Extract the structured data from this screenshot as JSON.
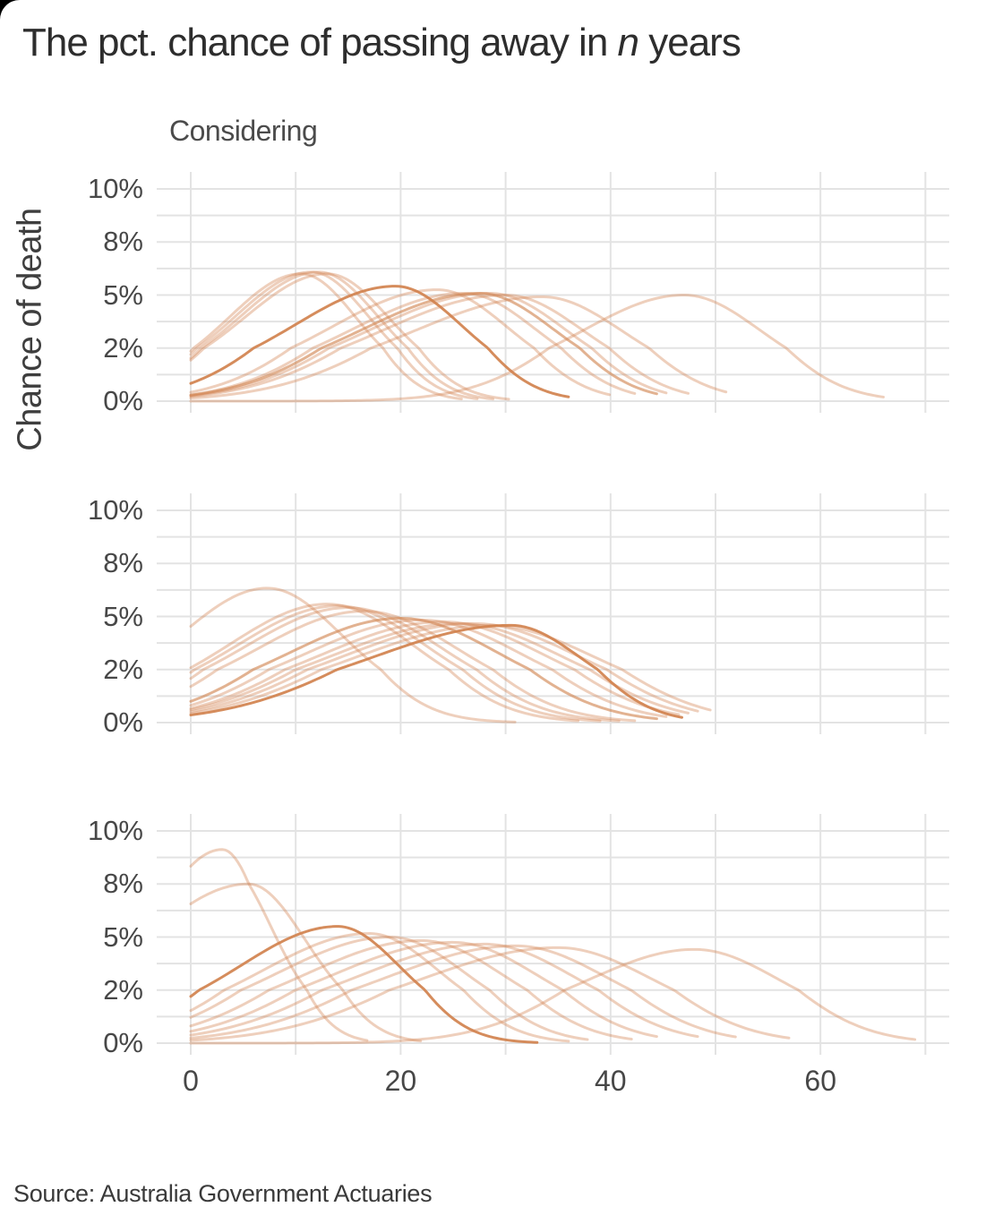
{
  "header": {
    "title_prefix": "The pct. chance of passing away in ",
    "title_italic": "n",
    "title_suffix": " years",
    "subtitle": "Considering"
  },
  "y_axis_title": "Chance of death",
  "source": "Source: Australia Government Actuaries",
  "colors": {
    "background": "#ffffff",
    "window_corner": "#000000",
    "title_text": "#2d2d2d",
    "subtitle_text": "#4b4b4b",
    "axis_text": "#474747",
    "gridline": "#e3e3e3",
    "curve_stroke": "#d1824e",
    "curve_opacity_normal": 0.38,
    "curve_opacity_medium": 0.62,
    "curve_opacity_strong": 0.92
  },
  "chart_data": {
    "type": "line",
    "title": "The pct. chance of passing away in n years",
    "subtitle": "Considering",
    "ylabel": "Chance of death",
    "xlabel": "",
    "legend": "none",
    "grid": "on",
    "x_range": [
      0,
      70
    ],
    "y_range_pct": [
      0,
      10
    ],
    "y_scale_note": "non-linear axis: labeled values 0,2,5,8,10 are evenly spaced",
    "y_scale_anchors_pct": [
      0,
      2,
      5,
      8,
      10
    ],
    "x_ticks": [
      {
        "value": 0,
        "label": "0"
      },
      {
        "value": 20,
        "label": "20"
      },
      {
        "value": 40,
        "label": "40"
      },
      {
        "value": 60,
        "label": "60"
      }
    ],
    "y_ticks": [
      {
        "value": 10,
        "label": "10%"
      },
      {
        "value": 8,
        "label": "8%"
      },
      {
        "value": 5,
        "label": "5%"
      },
      {
        "value": 2,
        "label": "2%"
      },
      {
        "value": 0,
        "label": "0%"
      }
    ],
    "x_gridline_values": [
      0,
      10,
      20,
      30,
      40,
      50,
      60,
      70
    ],
    "y_gridline_values_pct": [
      10,
      9,
      8,
      6.5,
      5,
      3.5,
      2,
      1,
      0
    ],
    "curve_model": "asymmetric gaussian: pct(x) = peak_pct * exp(-(x-peak_x)^2 / (2*sigma^2)), sigma_left before peak, sigma_right after, drawn from x=0 to end_x",
    "panels": [
      {
        "name": "panel-1",
        "curves": [
          {
            "peak_x": 10.5,
            "peak_pct": 6.2,
            "sigma_left": 6.8,
            "sigma_right": 5.2,
            "end_x": 26,
            "emphasis": "normal"
          },
          {
            "peak_x": 11.5,
            "peak_pct": 6.3,
            "sigma_left": 7.2,
            "sigma_right": 5.4,
            "end_x": 27.5,
            "emphasis": "normal"
          },
          {
            "peak_x": 12.2,
            "peak_pct": 6.3,
            "sigma_left": 7.4,
            "sigma_right": 5.6,
            "end_x": 29,
            "emphasis": "normal"
          },
          {
            "peak_x": 13,
            "peak_pct": 6.2,
            "sigma_left": 7.8,
            "sigma_right": 5.8,
            "end_x": 30.5,
            "emphasis": "normal"
          },
          {
            "peak_x": 19.5,
            "peak_pct": 5.5,
            "sigma_left": 9.5,
            "sigma_right": 6.2,
            "end_x": 36,
            "emphasis": "strong"
          },
          {
            "peak_x": 23.5,
            "peak_pct": 5.3,
            "sigma_left": 10,
            "sigma_right": 6.6,
            "end_x": 40,
            "emphasis": "normal"
          },
          {
            "peak_x": 26,
            "peak_pct": 5.1,
            "sigma_left": 10.5,
            "sigma_right": 6.8,
            "end_x": 42.5,
            "emphasis": "normal"
          },
          {
            "peak_x": 27.5,
            "peak_pct": 5.1,
            "sigma_left": 11,
            "sigma_right": 7,
            "end_x": 44.5,
            "emphasis": "medium"
          },
          {
            "peak_x": 28.5,
            "peak_pct": 5.1,
            "sigma_left": 11.2,
            "sigma_right": 7.1,
            "end_x": 45.5,
            "emphasis": "normal"
          },
          {
            "peak_x": 30,
            "peak_pct": 5,
            "sigma_left": 11.6,
            "sigma_right": 7.3,
            "end_x": 47.5,
            "emphasis": "normal"
          },
          {
            "peak_x": 33.5,
            "peak_pct": 4.9,
            "sigma_left": 12.2,
            "sigma_right": 7.6,
            "end_x": 51,
            "emphasis": "normal"
          },
          {
            "peak_x": 47,
            "peak_pct": 5,
            "sigma_left": 9.5,
            "sigma_right": 7.2,
            "end_x": 66,
            "emphasis": "normal"
          }
        ]
      },
      {
        "name": "panel-2",
        "curves": [
          {
            "peak_x": 7.3,
            "peak_pct": 6.6,
            "sigma_left": 8.2,
            "sigma_right": 7,
            "end_x": 31,
            "emphasis": "normal"
          },
          {
            "peak_x": 13,
            "peak_pct": 5.7,
            "sigma_left": 9.2,
            "sigma_right": 8,
            "end_x": 37,
            "emphasis": "normal"
          },
          {
            "peak_x": 14,
            "peak_pct": 5.6,
            "sigma_left": 9.5,
            "sigma_right": 8.3,
            "end_x": 39,
            "emphasis": "normal"
          },
          {
            "peak_x": 15,
            "peak_pct": 5.5,
            "sigma_left": 9.7,
            "sigma_right": 8.6,
            "end_x": 41,
            "emphasis": "normal"
          },
          {
            "peak_x": 16.5,
            "peak_pct": 5.3,
            "sigma_left": 10,
            "sigma_right": 8.8,
            "end_x": 42.5,
            "emphasis": "normal"
          },
          {
            "peak_x": 20,
            "peak_pct": 4.9,
            "sigma_left": 10.5,
            "sigma_right": 9.2,
            "end_x": 44.5,
            "emphasis": "medium"
          },
          {
            "peak_x": 22,
            "peak_pct": 4.8,
            "sigma_left": 11,
            "sigma_right": 9.4,
            "end_x": 45.5,
            "emphasis": "normal"
          },
          {
            "peak_x": 24,
            "peak_pct": 4.7,
            "sigma_left": 11.5,
            "sigma_right": 9.6,
            "end_x": 46.5,
            "emphasis": "normal"
          },
          {
            "peak_x": 25.5,
            "peak_pct": 4.6,
            "sigma_left": 12,
            "sigma_right": 9.7,
            "end_x": 47.5,
            "emphasis": "normal"
          },
          {
            "peak_x": 27,
            "peak_pct": 4.6,
            "sigma_left": 12.3,
            "sigma_right": 9.8,
            "end_x": 48.5,
            "emphasis": "normal"
          },
          {
            "peak_x": 28.5,
            "peak_pct": 4.5,
            "sigma_left": 12.6,
            "sigma_right": 9.9,
            "end_x": 49.5,
            "emphasis": "normal"
          },
          {
            "peak_x": 30.5,
            "peak_pct": 4.5,
            "sigma_left": 13,
            "sigma_right": 6.5,
            "end_x": 47,
            "emphasis": "strong"
          }
        ]
      },
      {
        "name": "panel-3",
        "curves": [
          {
            "peak_x": 3,
            "peak_pct": 9.3,
            "sigma_left": 8,
            "sigma_right": 4.6,
            "end_x": 17,
            "emphasis": "normal"
          },
          {
            "peak_x": 5.5,
            "peak_pct": 8,
            "sigma_left": 10,
            "sigma_right": 5.4,
            "end_x": 22,
            "emphasis": "normal"
          },
          {
            "peak_x": 14,
            "peak_pct": 5.6,
            "sigma_left": 9.2,
            "sigma_right": 5.8,
            "end_x": 33,
            "emphasis": "strong"
          },
          {
            "peak_x": 17,
            "peak_pct": 5.2,
            "sigma_left": 10,
            "sigma_right": 6.5,
            "end_x": 36,
            "emphasis": "normal"
          },
          {
            "peak_x": 19,
            "peak_pct": 5,
            "sigma_left": 10.5,
            "sigma_right": 7,
            "end_x": 38,
            "emphasis": "normal"
          },
          {
            "peak_x": 22,
            "peak_pct": 4.8,
            "sigma_left": 11,
            "sigma_right": 7.6,
            "end_x": 42,
            "emphasis": "normal"
          },
          {
            "peak_x": 25,
            "peak_pct": 4.7,
            "sigma_left": 11.5,
            "sigma_right": 8,
            "end_x": 44.5,
            "emphasis": "normal"
          },
          {
            "peak_x": 28,
            "peak_pct": 4.6,
            "sigma_left": 12,
            "sigma_right": 8.4,
            "end_x": 48.5,
            "emphasis": "normal"
          },
          {
            "peak_x": 31,
            "peak_pct": 4.5,
            "sigma_left": 12.3,
            "sigma_right": 8.6,
            "end_x": 52,
            "emphasis": "normal"
          },
          {
            "peak_x": 35,
            "peak_pct": 4.4,
            "sigma_left": 12.8,
            "sigma_right": 8.8,
            "end_x": 57,
            "emphasis": "normal"
          },
          {
            "peak_x": 48,
            "peak_pct": 4.3,
            "sigma_left": 10,
            "sigma_right": 8,
            "end_x": 69,
            "emphasis": "normal"
          }
        ]
      }
    ]
  }
}
